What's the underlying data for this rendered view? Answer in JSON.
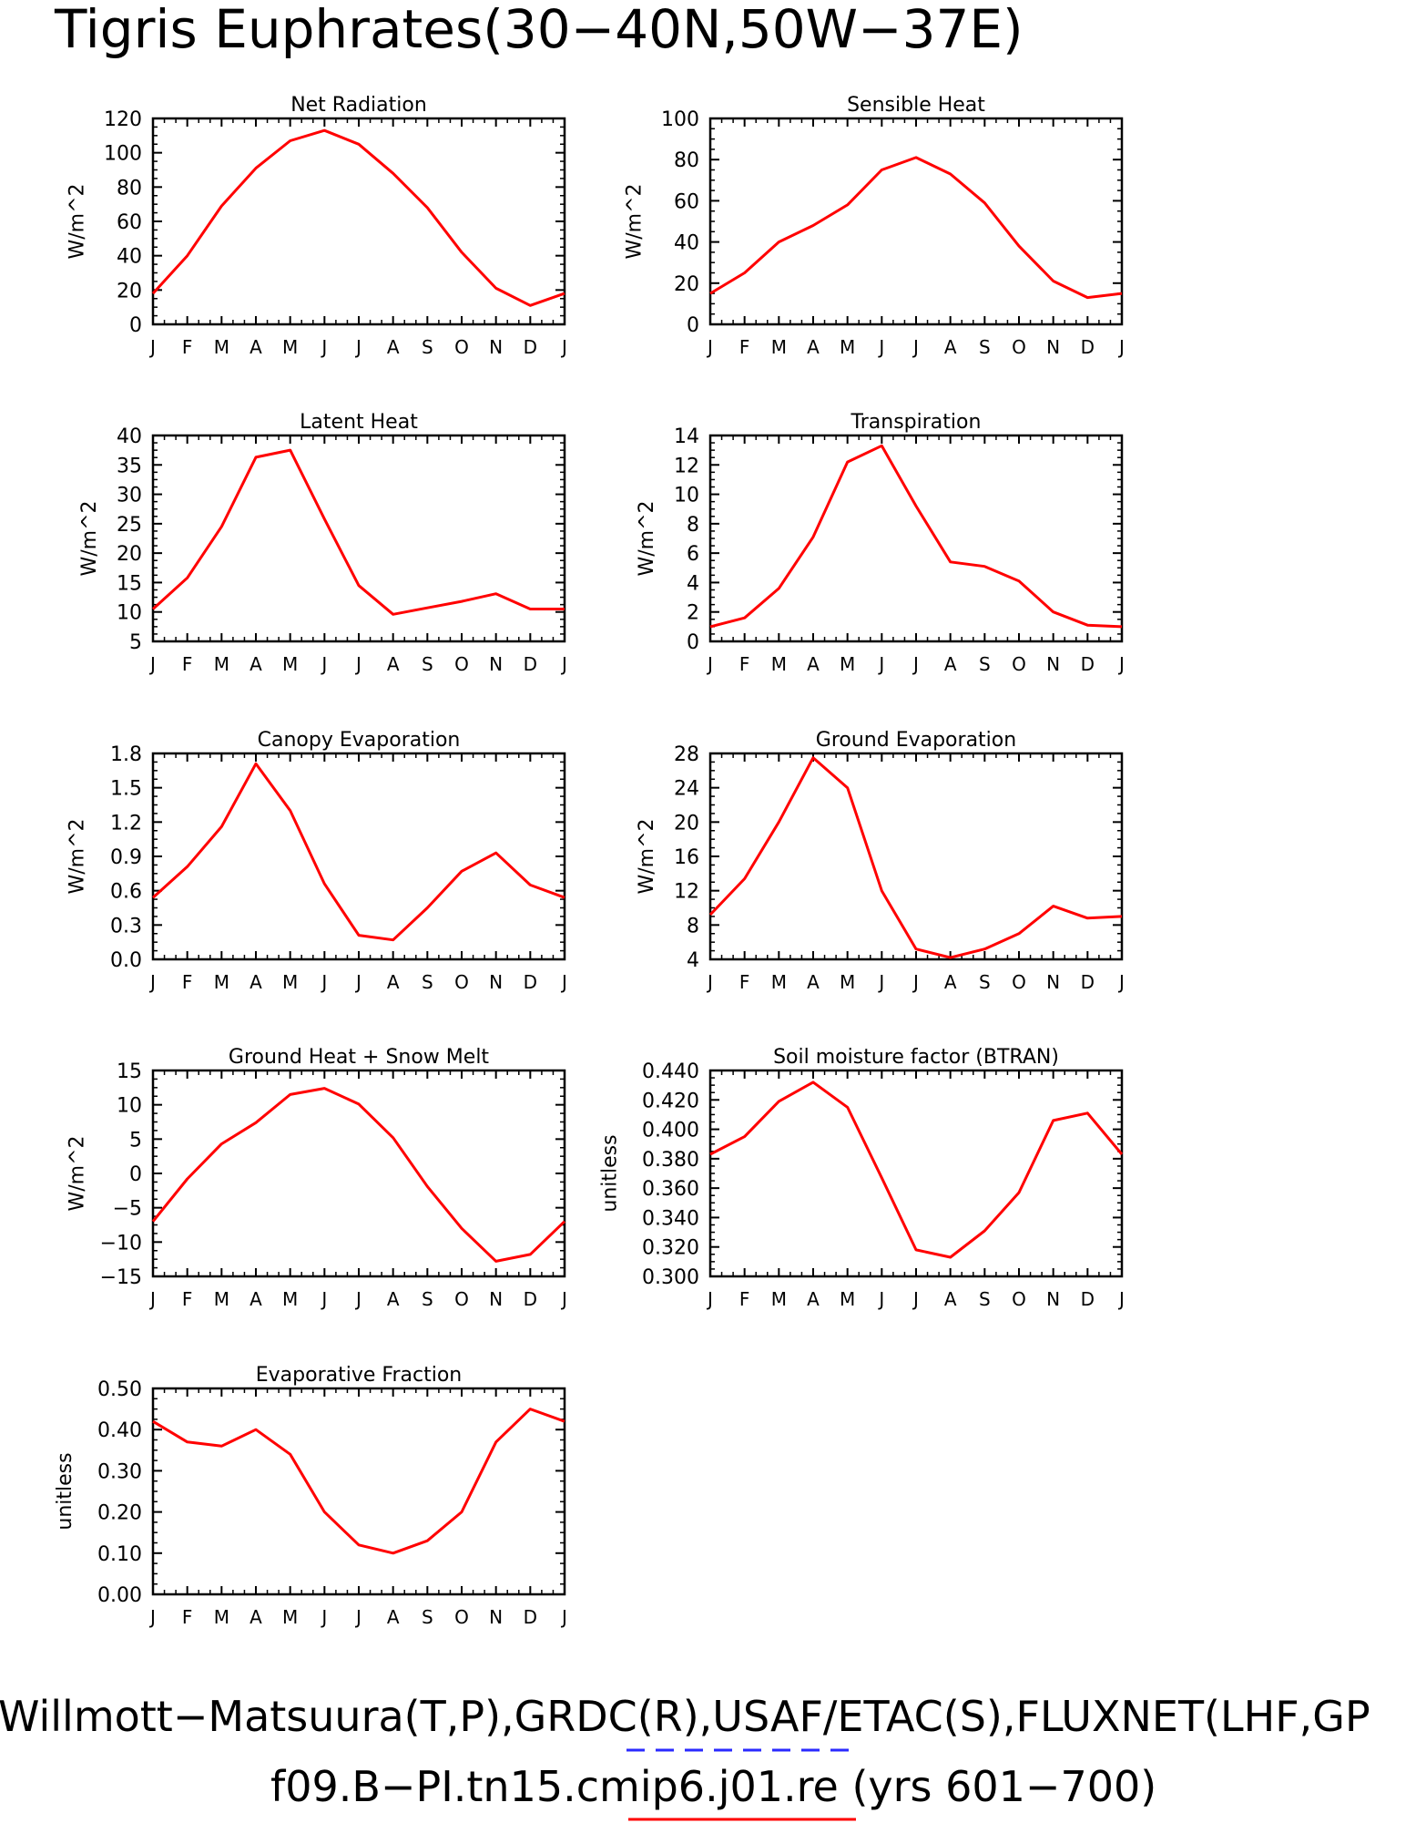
{
  "page": {
    "title": "Tigris Euphrates(30−40N,50W−37E)",
    "footer_line1": "Willmott−Matsuura(T,P),GRDC(R),USAF/ETAC(S),FLUXNET(LHF,GP",
    "footer_line2": "f09.B−PI.tn15.cmip6.j01.re (yrs 601−700)",
    "legend": [
      {
        "label": "GRDC(R),USAF",
        "color": "#2a2aff",
        "style": "dashed"
      },
      {
        "label": "cmip6.j01.re",
        "color": "#ff0000",
        "style": "solid"
      }
    ]
  },
  "colors": {
    "line": "#ff0000",
    "axis": "#000000"
  },
  "chart_data": [
    {
      "type": "line",
      "title": "Net Radiation",
      "ylabel": "W/m^2",
      "categories": [
        "J",
        "F",
        "M",
        "A",
        "M",
        "J",
        "J",
        "A",
        "S",
        "O",
        "N",
        "D",
        "J"
      ],
      "ylim": [
        0,
        120
      ],
      "yticks": [
        0,
        20,
        40,
        60,
        80,
        100,
        120
      ],
      "ytick_labels": [
        "0",
        "20",
        "40",
        "60",
        "80",
        "100",
        "120"
      ],
      "series": [
        {
          "values": [
            18,
            40,
            69,
            91,
            107,
            113,
            105,
            88,
            68,
            42,
            21,
            11,
            18
          ]
        }
      ]
    },
    {
      "type": "line",
      "title": "Sensible Heat",
      "ylabel": "W/m^2",
      "categories": [
        "J",
        "F",
        "M",
        "A",
        "M",
        "J",
        "J",
        "A",
        "S",
        "O",
        "N",
        "D",
        "J"
      ],
      "ylim": [
        0,
        100
      ],
      "yticks": [
        0,
        20,
        40,
        60,
        80,
        100
      ],
      "ytick_labels": [
        "0",
        "20",
        "40",
        "60",
        "80",
        "100"
      ],
      "series": [
        {
          "values": [
            15,
            25,
            40,
            48,
            58,
            75,
            81,
            73,
            59,
            38,
            21,
            13,
            15
          ]
        }
      ]
    },
    {
      "type": "line",
      "title": "Latent Heat",
      "ylabel": "W/m^2",
      "categories": [
        "J",
        "F",
        "M",
        "A",
        "M",
        "J",
        "J",
        "A",
        "S",
        "O",
        "N",
        "D",
        "J"
      ],
      "ylim": [
        5,
        40
      ],
      "yticks": [
        5,
        10,
        15,
        20,
        25,
        30,
        35,
        40
      ],
      "ytick_labels": [
        "5",
        "10",
        "15",
        "20",
        "25",
        "30",
        "35",
        "40"
      ],
      "series": [
        {
          "values": [
            10.5,
            15.8,
            24.5,
            36.3,
            37.5,
            25.8,
            14.5,
            9.6,
            10.7,
            11.8,
            13.1,
            10.5,
            10.5
          ]
        }
      ]
    },
    {
      "type": "line",
      "title": "Transpiration",
      "ylabel": "W/m^2",
      "categories": [
        "J",
        "F",
        "M",
        "A",
        "M",
        "J",
        "J",
        "A",
        "S",
        "O",
        "N",
        "D",
        "J"
      ],
      "ylim": [
        0,
        14
      ],
      "yticks": [
        0,
        2,
        4,
        6,
        8,
        10,
        12,
        14
      ],
      "ytick_labels": [
        "0",
        "2",
        "4",
        "6",
        "8",
        "10",
        "12",
        "14"
      ],
      "series": [
        {
          "values": [
            1.0,
            1.6,
            3.6,
            7.1,
            12.2,
            13.3,
            9.2,
            5.4,
            5.1,
            4.1,
            2.0,
            1.1,
            1.0
          ]
        }
      ]
    },
    {
      "type": "line",
      "title": "Canopy Evaporation",
      "ylabel": "W/m^2",
      "categories": [
        "J",
        "F",
        "M",
        "A",
        "M",
        "J",
        "J",
        "A",
        "S",
        "O",
        "N",
        "D",
        "J"
      ],
      "ylim": [
        0,
        1.8
      ],
      "yticks": [
        0,
        0.3,
        0.6,
        0.9,
        1.2,
        1.5,
        1.8
      ],
      "ytick_labels": [
        "0.0",
        "0.3",
        "0.6",
        "0.9",
        "1.2",
        "1.5",
        "1.8"
      ],
      "series": [
        {
          "values": [
            0.54,
            0.81,
            1.16,
            1.71,
            1.3,
            0.66,
            0.21,
            0.17,
            0.45,
            0.77,
            0.93,
            0.65,
            0.54
          ]
        }
      ]
    },
    {
      "type": "line",
      "title": "Ground Evaporation",
      "ylabel": "W/m^2",
      "categories": [
        "J",
        "F",
        "M",
        "A",
        "M",
        "J",
        "J",
        "A",
        "S",
        "O",
        "N",
        "D",
        "J"
      ],
      "ylim": [
        4,
        28
      ],
      "yticks": [
        4,
        8,
        12,
        16,
        20,
        24,
        28
      ],
      "ytick_labels": [
        "4",
        "8",
        "12",
        "16",
        "20",
        "24",
        "28"
      ],
      "series": [
        {
          "values": [
            9.2,
            13.4,
            20.0,
            27.5,
            24.0,
            12.0,
            5.2,
            4.2,
            5.2,
            7.0,
            10.2,
            8.8,
            9.0
          ]
        }
      ]
    },
    {
      "type": "line",
      "title": "Ground Heat + Snow Melt",
      "ylabel": "W/m^2",
      "categories": [
        "J",
        "F",
        "M",
        "A",
        "M",
        "J",
        "J",
        "A",
        "S",
        "O",
        "N",
        "D",
        "J"
      ],
      "ylim": [
        -15,
        15
      ],
      "yticks": [
        -15,
        -10,
        -5,
        0,
        5,
        10,
        15
      ],
      "ytick_labels": [
        "−15",
        "−10",
        "−5",
        "0",
        "5",
        "10",
        "15"
      ],
      "series": [
        {
          "values": [
            -7.0,
            -0.8,
            4.3,
            7.4,
            11.5,
            12.4,
            10.1,
            5.2,
            -1.9,
            -8.0,
            -12.8,
            -11.8,
            -7.0
          ]
        }
      ]
    },
    {
      "type": "line",
      "title": "Soil moisture factor (BTRAN)",
      "ylabel": "unitless",
      "categories": [
        "J",
        "F",
        "M",
        "A",
        "M",
        "J",
        "J",
        "A",
        "S",
        "O",
        "N",
        "D",
        "J"
      ],
      "ylim": [
        0.3,
        0.44
      ],
      "yticks": [
        0.3,
        0.32,
        0.34,
        0.36,
        0.38,
        0.4,
        0.42,
        0.44
      ],
      "ytick_labels": [
        "0.300",
        "0.320",
        "0.340",
        "0.360",
        "0.380",
        "0.400",
        "0.420",
        "0.440"
      ],
      "series": [
        {
          "values": [
            0.383,
            0.395,
            0.419,
            0.432,
            0.415,
            0.367,
            0.318,
            0.313,
            0.331,
            0.357,
            0.406,
            0.411,
            0.383
          ]
        }
      ]
    },
    {
      "type": "line",
      "title": "Evaporative Fraction",
      "ylabel": "unitless",
      "categories": [
        "J",
        "F",
        "M",
        "A",
        "M",
        "J",
        "J",
        "A",
        "S",
        "O",
        "N",
        "D",
        "J"
      ],
      "ylim": [
        0,
        0.5
      ],
      "yticks": [
        0,
        0.1,
        0.2,
        0.3,
        0.4,
        0.5
      ],
      "ytick_labels": [
        "0.00",
        "0.10",
        "0.20",
        "0.30",
        "0.40",
        "0.50"
      ],
      "series": [
        {
          "values": [
            0.42,
            0.37,
            0.36,
            0.4,
            0.34,
            0.2,
            0.12,
            0.1,
            0.13,
            0.2,
            0.37,
            0.45,
            0.42
          ]
        }
      ]
    }
  ]
}
